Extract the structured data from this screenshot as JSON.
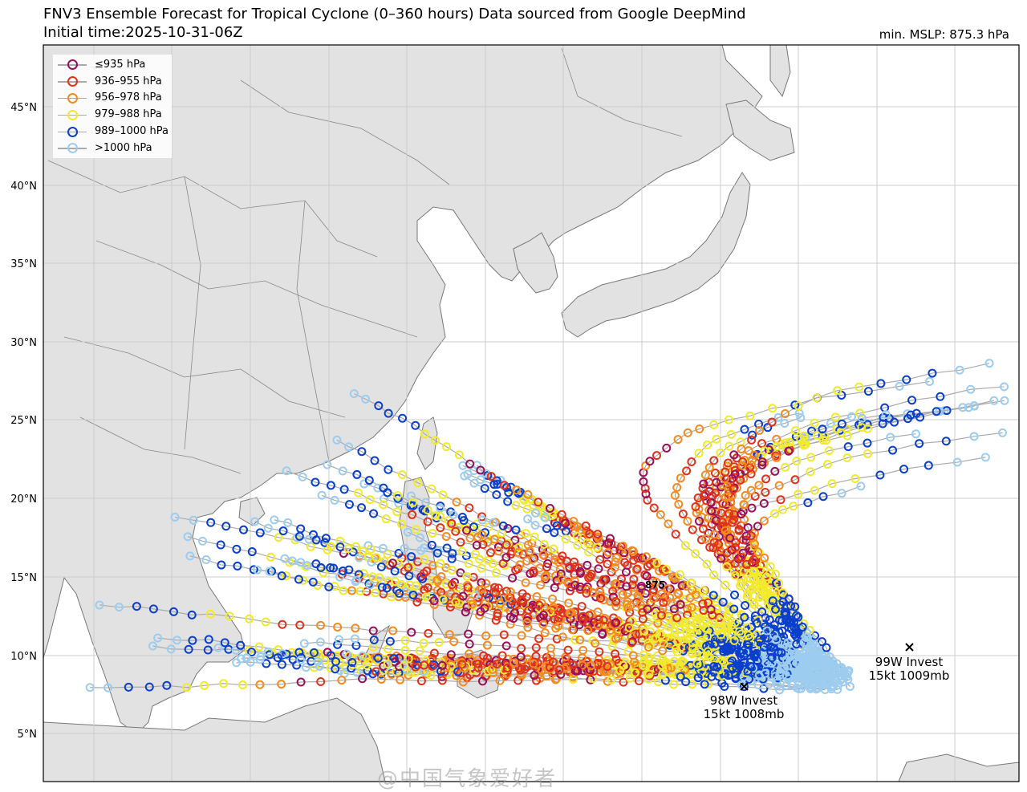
{
  "header": {
    "title": "FNV3 Ensemble Forecast for Tropical Cyclone (0–360 hours) Data sourced from Google DeepMind",
    "init_time": "Initial time:2025-10-31-06Z",
    "min_mslp": "min. MSLP: 875.3 hPa"
  },
  "axes": {
    "lat_ticks": [
      "45°N",
      "40°N",
      "35°N",
      "30°N",
      "25°N",
      "20°N",
      "15°N",
      "10°N",
      "5°N"
    ]
  },
  "legend": [
    {
      "label": "≤935 hPa",
      "color": "#9a0f5a"
    },
    {
      "label": "936–955 hPa",
      "color": "#e0321b"
    },
    {
      "label": "956–978 hPa",
      "color": "#f58a1f"
    },
    {
      "label": "979–988 hPa",
      "color": "#f2ea2a"
    },
    {
      "label": "989–1000 hPa",
      "color": "#0a3fcc"
    },
    {
      "label": ">1000 hPa",
      "color": "#9ccdf0"
    }
  ],
  "annotations": {
    "min_marker": "875",
    "invest_99w": {
      "name": "99W Invest",
      "info": "15kt 1009mb"
    },
    "invest_98w": {
      "name": "98W Invest",
      "info": "15kt 1008mb"
    }
  },
  "map_colors": {
    "land": "#e2e2e2",
    "sea": "#ffffff",
    "coast": "#777777",
    "grid": "#cccccc",
    "track": "#aaaaaa"
  },
  "watermark": "@中国气象爱好者"
}
